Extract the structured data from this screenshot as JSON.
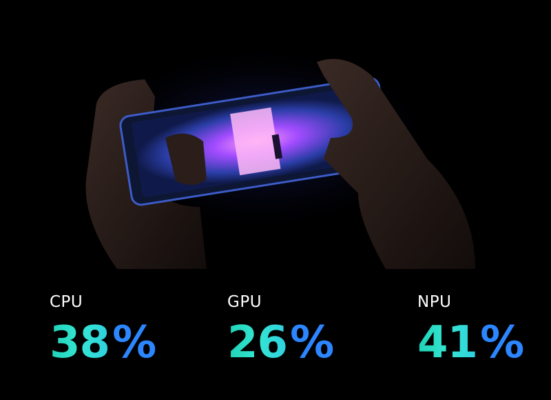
{
  "stats": [
    {
      "label": "CPU",
      "value": 38,
      "unit": "%"
    },
    {
      "label": "GPU",
      "value": 26,
      "unit": "%"
    },
    {
      "label": "NPU",
      "value": 41,
      "unit": "%"
    }
  ]
}
